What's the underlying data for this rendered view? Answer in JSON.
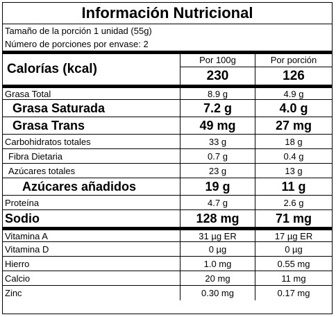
{
  "title": "Información Nutricional",
  "serving_size": "Tamaño de la porción 1 unidad (55g)",
  "servings_per_container": "Número de porciones por envase:  2",
  "header": {
    "calories_label": "Calorías (kcal)",
    "col1_label": "Por 100g",
    "col2_label": "Por porción",
    "calories_100g": "230",
    "calories_portion": "126"
  },
  "nutrients": {
    "grasa_total": {
      "name": "Grasa Total",
      "per100": "8.9 g",
      "portion": "4.9 g"
    },
    "grasa_saturada": {
      "name": "Grasa Saturada",
      "per100": "7.2 g",
      "portion": "4.0 g"
    },
    "grasa_trans": {
      "name": "Grasa Trans",
      "per100": "49 mg",
      "portion": "27 mg"
    },
    "carbohidratos": {
      "name": "Carbohidratos totales",
      "per100": "33 g",
      "portion": "18 g"
    },
    "fibra": {
      "name": "Fibra Dietaria",
      "per100": "0.7 g",
      "portion": "0.4 g"
    },
    "azucares_totales": {
      "name": "Azúcares totales",
      "per100": "23 g",
      "portion": "13 g"
    },
    "azucares_anadidos": {
      "name": "Azúcares añadidos",
      "per100": "19 g",
      "portion": "11 g"
    },
    "proteina": {
      "name": "Proteína",
      "per100": "4.7 g",
      "portion": "2.6 g"
    },
    "sodio": {
      "name": "Sodio",
      "per100": "128 mg",
      "portion": "71 mg"
    }
  },
  "vitamins": {
    "vitamina_a": {
      "name": "Vitamina A",
      "per100": "31 µg ER",
      "portion": "17 µg ER"
    },
    "vitamina_d": {
      "name": "Vitamina D",
      "per100": "0 µg",
      "portion": "0 µg"
    },
    "hierro": {
      "name": "Hierro",
      "per100": "1.0 mg",
      "portion": "0.55 mg"
    },
    "calcio": {
      "name": "Calcio",
      "per100": "20 mg",
      "portion": "11 mg"
    },
    "zinc": {
      "name": "Zinc",
      "per100": "0.30 mg",
      "portion": "0.17 mg"
    }
  }
}
